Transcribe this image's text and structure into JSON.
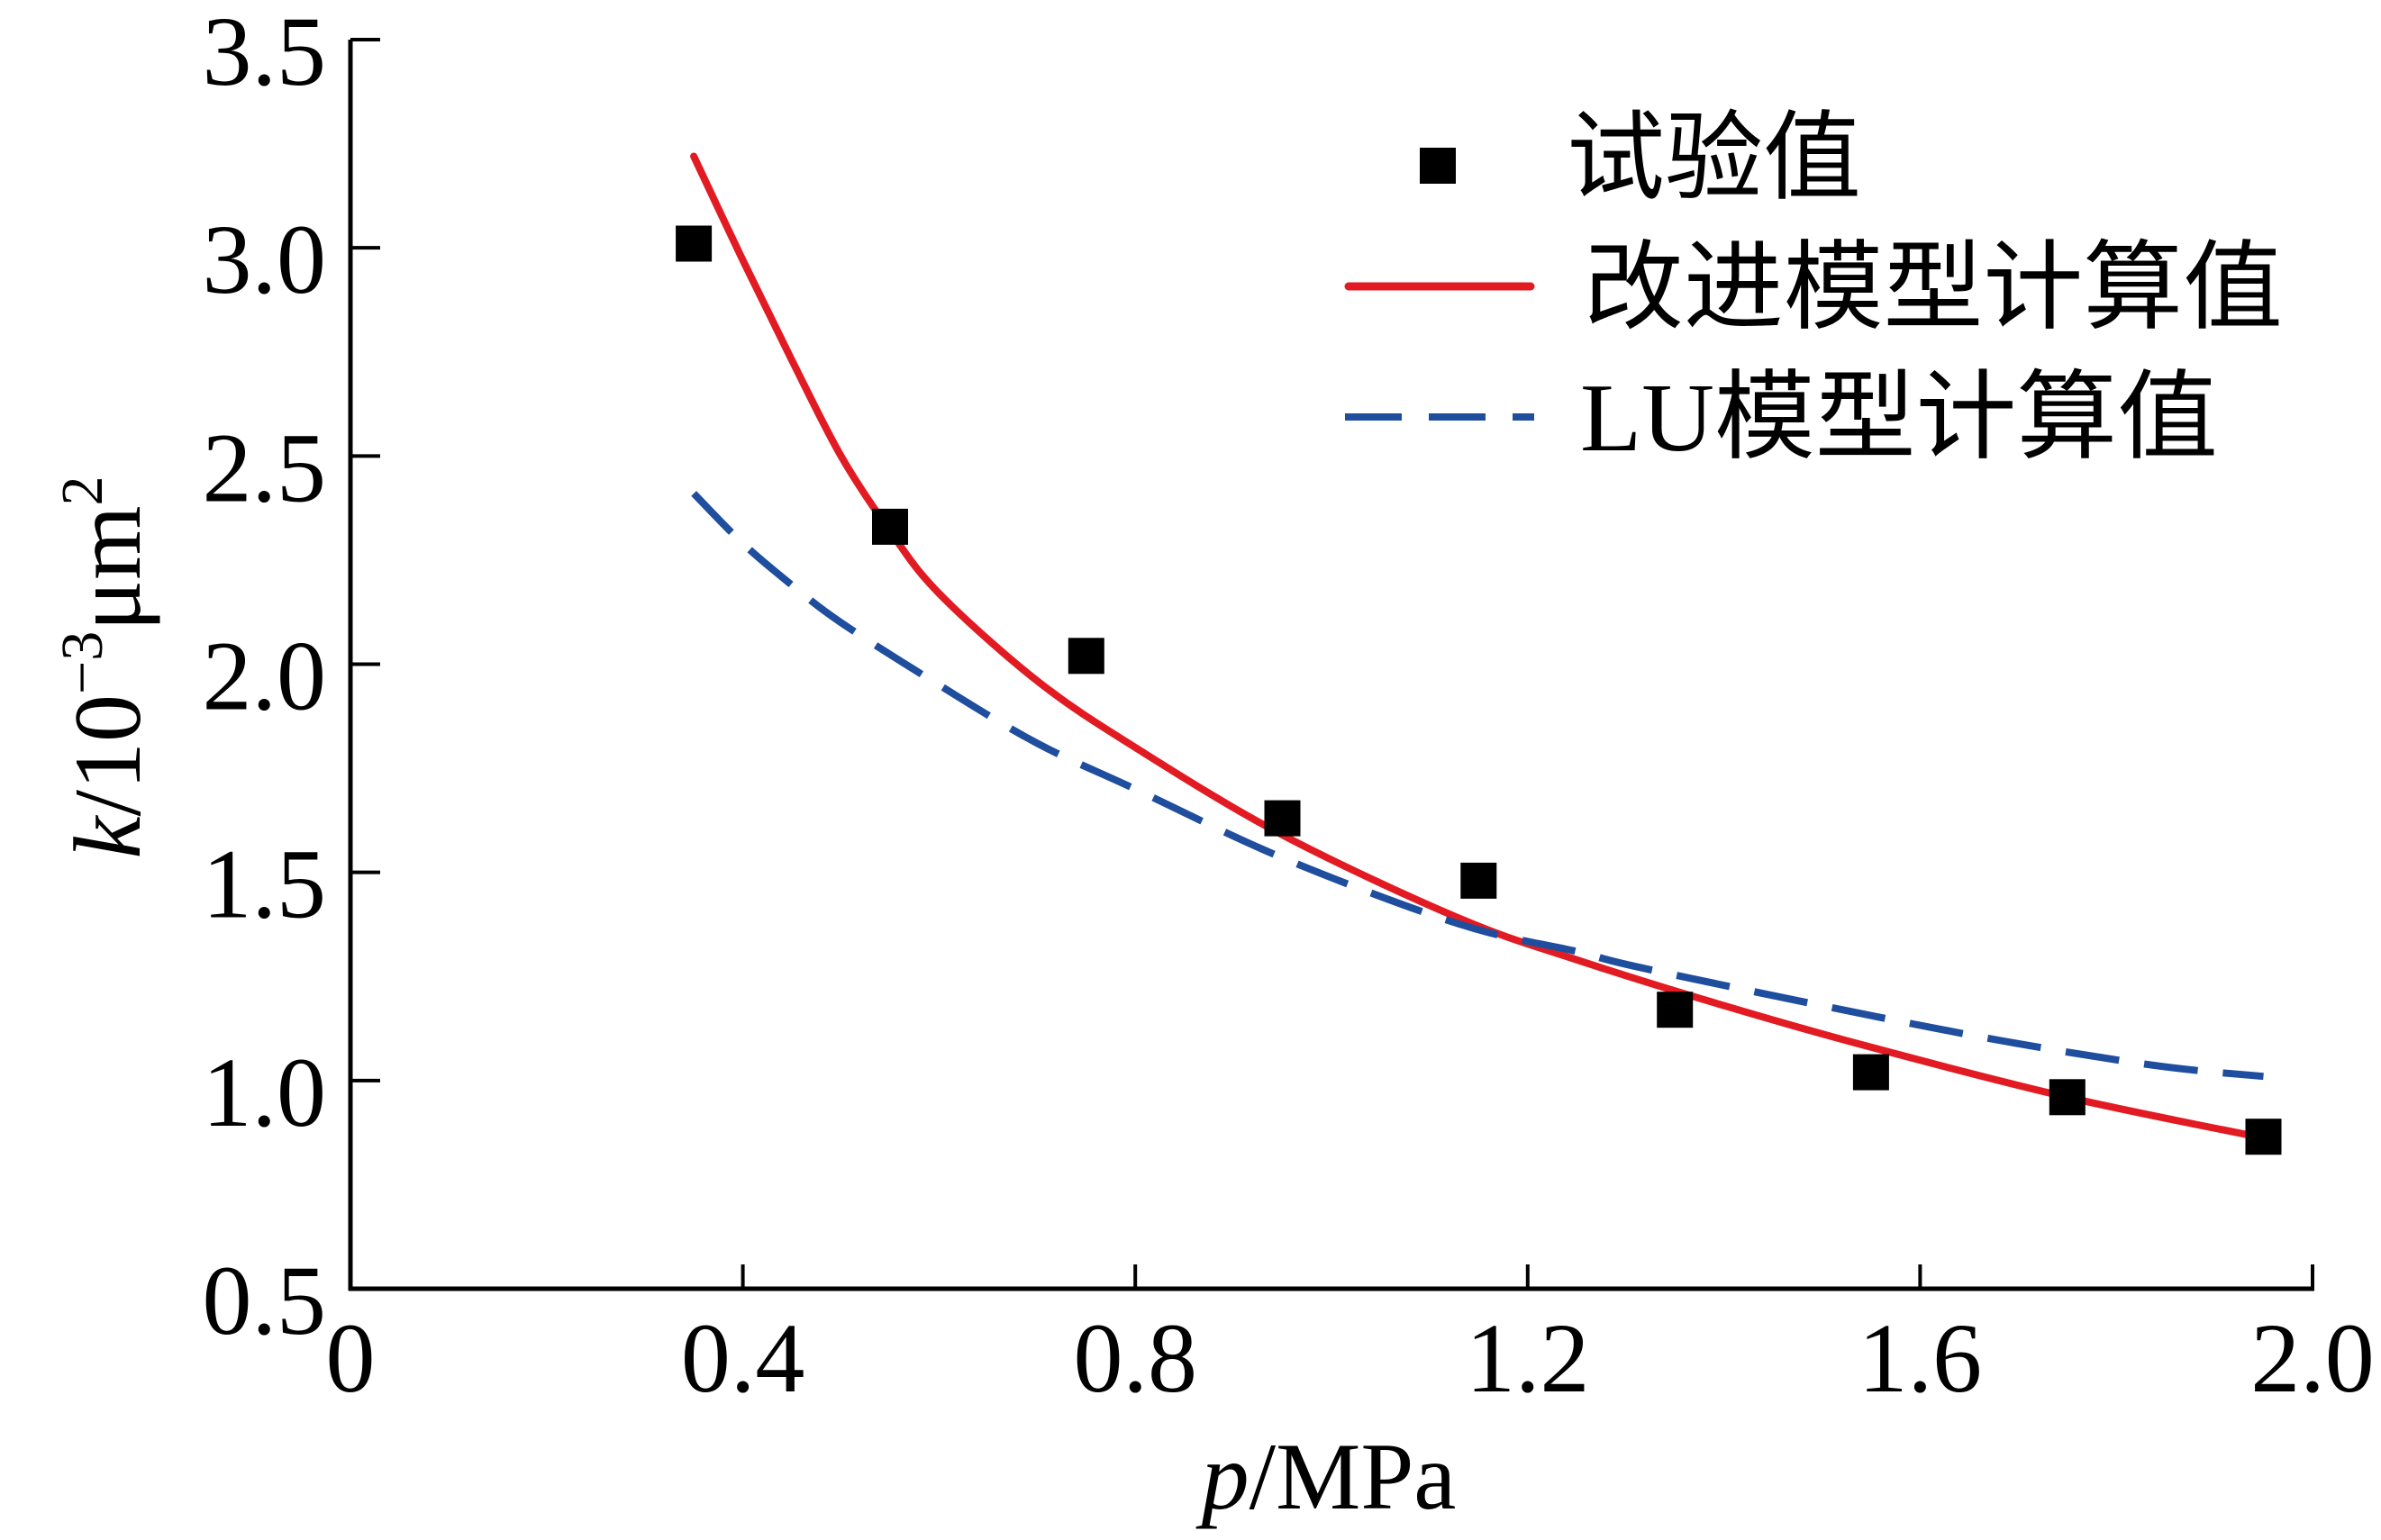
{
  "chart_data": {
    "type": "line",
    "title": "",
    "xlabel_parts": {
      "var": "p",
      "unit": "/MPa"
    },
    "ylabel_parts": {
      "var": "k",
      "base": "/10",
      "exp": "−3",
      "unit": "μm",
      "unit_exp": "2"
    },
    "xlim": [
      0,
      2.0
    ],
    "ylim": [
      0.5,
      3.5
    ],
    "xticks": [
      0,
      0.4,
      0.8,
      1.2,
      1.6,
      2.0
    ],
    "xtick_labels": [
      "0",
      "0.4",
      "0.8",
      "1.2",
      "1.6",
      "2.0"
    ],
    "yticks": [
      0.5,
      1.0,
      1.5,
      2.0,
      2.5,
      3.0,
      3.5
    ],
    "ytick_labels": [
      "0.5",
      "1.0",
      "1.5",
      "2.0",
      "2.5",
      "3.0",
      "3.5"
    ],
    "grid": false,
    "legend_position": "top-right",
    "series": [
      {
        "name": "试验值",
        "mode": "markers",
        "marker": "square",
        "color": "#000000",
        "x": [
          0.35,
          0.55,
          0.75,
          0.95,
          1.15,
          1.35,
          1.55,
          1.75,
          1.95
        ],
        "y": [
          3.01,
          2.33,
          2.02,
          1.63,
          1.48,
          1.17,
          1.02,
          0.96,
          0.865
        ]
      },
      {
        "name": "改进模型计算值",
        "mode": "line",
        "line_style": "solid",
        "color": "#E21B23",
        "x": [
          0.35,
          0.4,
          0.45,
          0.5,
          0.55,
          0.6,
          0.7,
          0.8,
          0.95,
          1.13,
          1.25,
          1.4,
          1.55,
          1.75,
          1.95
        ],
        "y": [
          3.22,
          2.97,
          2.73,
          2.5,
          2.32,
          2.17,
          1.96,
          1.8,
          1.59,
          1.39,
          1.29,
          1.18,
          1.08,
          0.96,
          0.862
        ]
      },
      {
        "name": "LU模型计算值",
        "mode": "line",
        "line_style": "dashed",
        "color": "#1F4E9E",
        "x": [
          0.35,
          0.4,
          0.45,
          0.5,
          0.6,
          0.7,
          0.8,
          0.95,
          1.13,
          1.25,
          1.31,
          1.5,
          1.68,
          1.84,
          1.95
        ],
        "y": [
          2.41,
          2.29,
          2.19,
          2.1,
          1.95,
          1.81,
          1.7,
          1.535,
          1.376,
          1.31,
          1.274,
          1.18,
          1.097,
          1.036,
          1.01
        ]
      }
    ]
  }
}
